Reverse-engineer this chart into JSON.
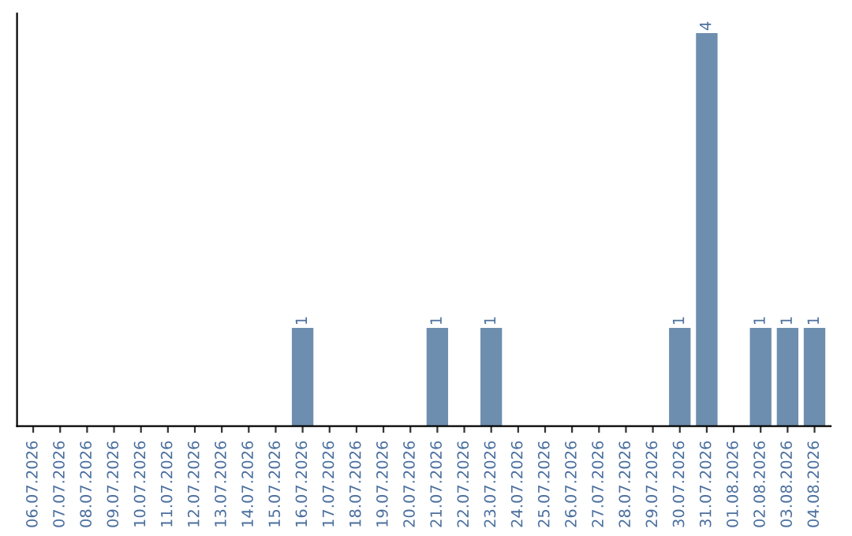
{
  "chart_data": {
    "type": "bar",
    "categories": [
      "06.07.2026",
      "07.07.2026",
      "08.07.2026",
      "09.07.2026",
      "10.07.2026",
      "11.07.2026",
      "12.07.2026",
      "13.07.2026",
      "14.07.2026",
      "15.07.2026",
      "16.07.2026",
      "17.07.2026",
      "18.07.2026",
      "19.07.2026",
      "20.07.2026",
      "21.07.2026",
      "22.07.2026",
      "23.07.2026",
      "24.07.2026",
      "25.07.2026",
      "26.07.2026",
      "27.07.2026",
      "28.07.2026",
      "29.07.2026",
      "30.07.2026",
      "31.07.2026",
      "01.08.2026",
      "02.08.2026",
      "03.08.2026",
      "04.08.2026"
    ],
    "values": [
      0,
      0,
      0,
      0,
      0,
      0,
      0,
      0,
      0,
      0,
      1,
      0,
      0,
      0,
      0,
      1,
      0,
      1,
      0,
      0,
      0,
      0,
      0,
      0,
      1,
      4,
      0,
      1,
      1,
      1
    ],
    "value_labels": [
      null,
      null,
      null,
      null,
      null,
      null,
      null,
      null,
      null,
      null,
      "1",
      null,
      null,
      null,
      null,
      "1",
      null,
      "1",
      null,
      null,
      null,
      null,
      null,
      null,
      "1",
      "4",
      null,
      "1",
      "1",
      "1"
    ],
    "color": "#6d8eae",
    "grid": false,
    "legend": false,
    "tick_labels": "x"
  }
}
